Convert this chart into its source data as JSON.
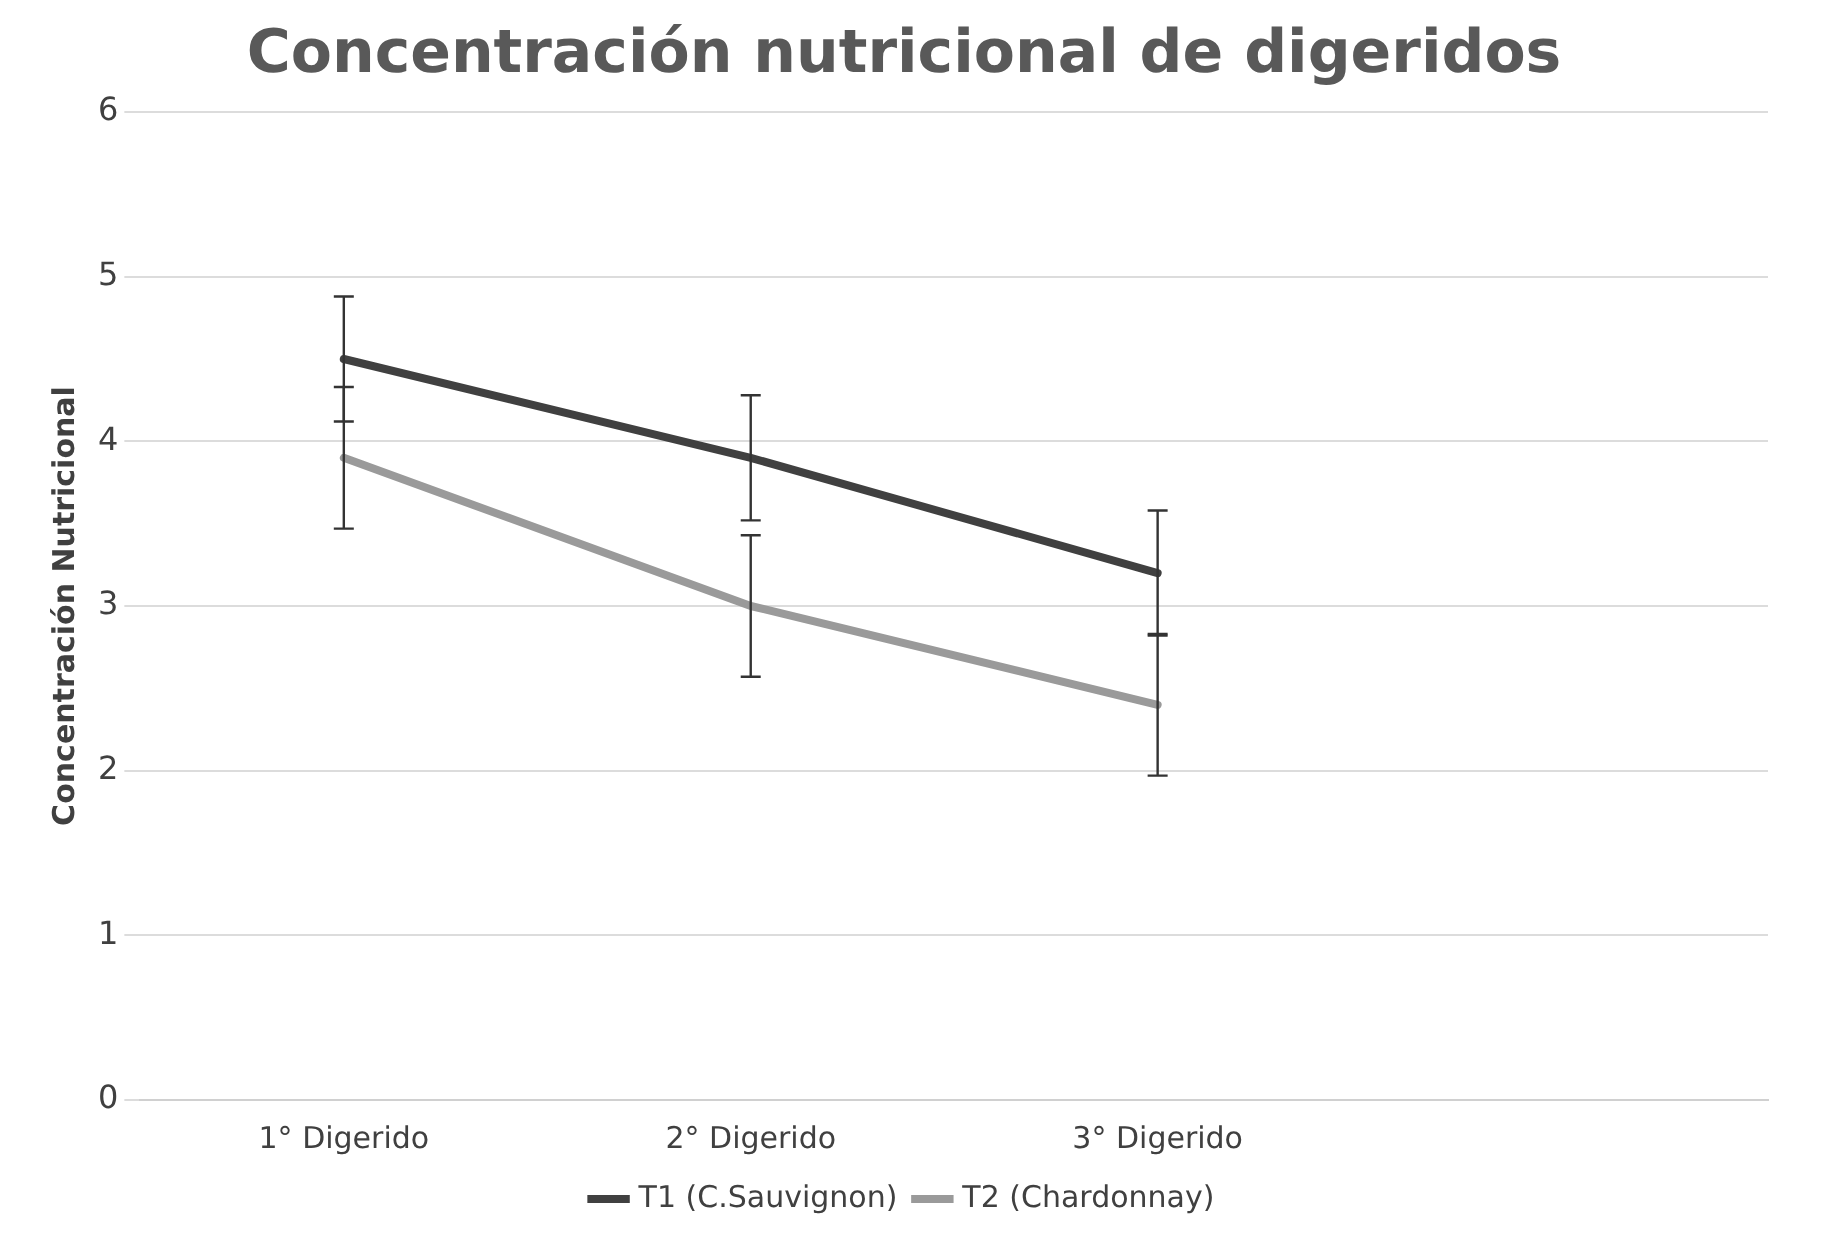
{
  "chart_data": {
    "type": "line",
    "title": "Concentración nutricional de digeridos",
    "ylabel": "Concentración Nutricional",
    "categories": [
      "1° Digerido",
      "2° Digerido",
      "3° Digerido",
      null
    ],
    "series": [
      {
        "name": "T1 (C.Sauvignon)",
        "color": "#404040",
        "values": [
          4.5,
          3.9,
          3.2,
          null
        ],
        "errors": [
          0.38,
          0.38,
          0.38,
          null
        ]
      },
      {
        "name": "T2 (Chardonnay)",
        "color": "#9a9a9a",
        "values": [
          3.9,
          3.0,
          2.4,
          null
        ],
        "errors": [
          0.43,
          0.43,
          0.43,
          null
        ]
      }
    ],
    "ylim": [
      0,
      6
    ],
    "yticks": [
      0,
      1,
      2,
      3,
      4,
      5,
      6
    ],
    "grid": "y",
    "legend": "bottom",
    "marker": "none",
    "line_style": "solid"
  }
}
